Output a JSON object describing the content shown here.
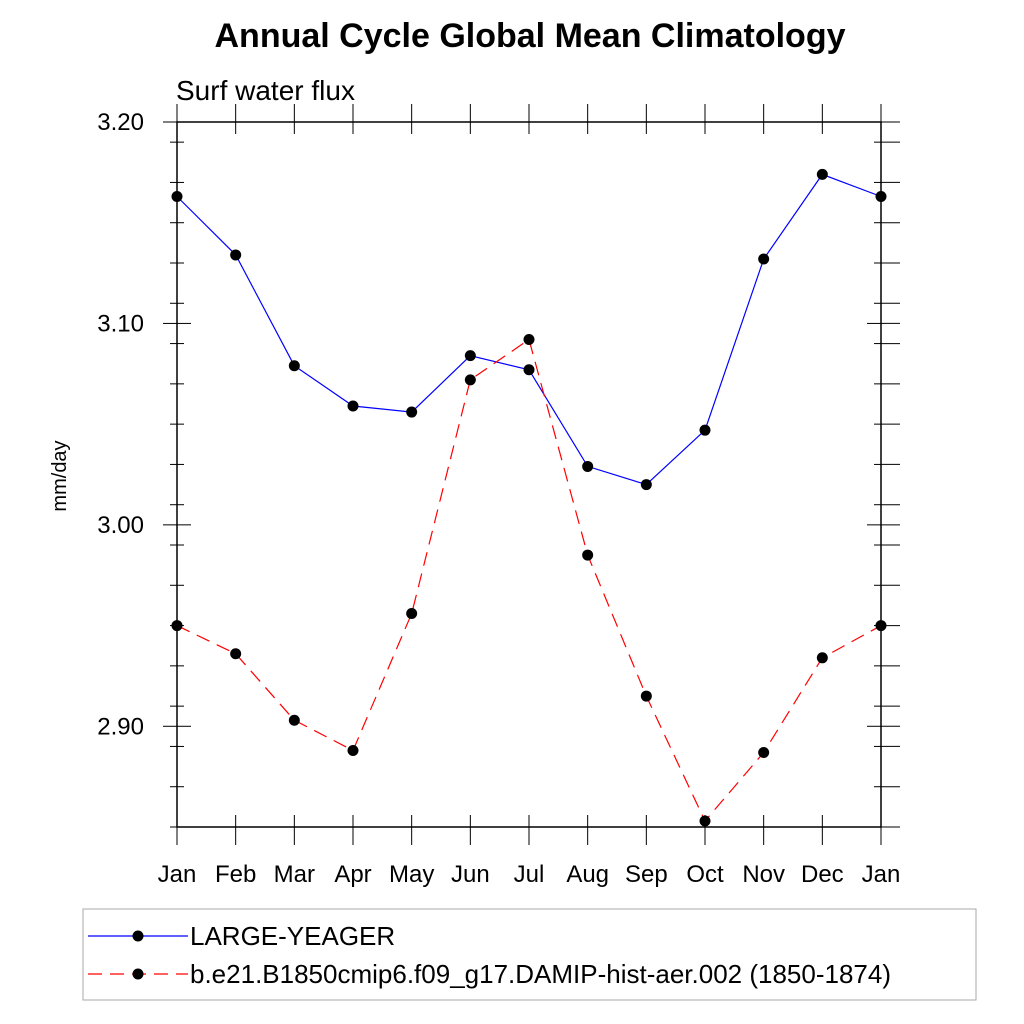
{
  "chart_data": {
    "type": "line",
    "title": "Annual Cycle Global Mean Climatology",
    "subtitle": "Surf water flux",
    "xlabel": "",
    "ylabel": "mm/day",
    "categories": [
      "Jan",
      "Feb",
      "Mar",
      "Apr",
      "May",
      "Jun",
      "Jul",
      "Aug",
      "Sep",
      "Oct",
      "Nov",
      "Dec",
      "Jan"
    ],
    "ylim": [
      2.85,
      3.2
    ],
    "yticks": [
      2.9,
      3.0,
      3.1,
      3.2
    ],
    "ytick_labels": [
      "2.90",
      "3.00",
      "3.10",
      "3.20"
    ],
    "series": [
      {
        "name": "LARGE-YEAGER",
        "color": "#0000ff",
        "style": "solid",
        "marker": "filled-circle",
        "values": [
          3.163,
          3.134,
          3.079,
          3.059,
          3.056,
          3.084,
          3.077,
          3.029,
          3.02,
          3.047,
          3.132,
          3.174,
          3.163
        ]
      },
      {
        "name": "b.e21.B1850cmip6.f09_g17.DAMIP-hist-aer.002 (1850-1874)",
        "color": "#ff0000",
        "style": "dashed",
        "marker": "filled-circle",
        "values": [
          2.95,
          2.936,
          2.903,
          2.888,
          2.956,
          3.072,
          3.092,
          2.985,
          2.915,
          2.853,
          2.887,
          2.934,
          2.95
        ]
      }
    ],
    "grid": false,
    "legend_position": "bottom"
  }
}
